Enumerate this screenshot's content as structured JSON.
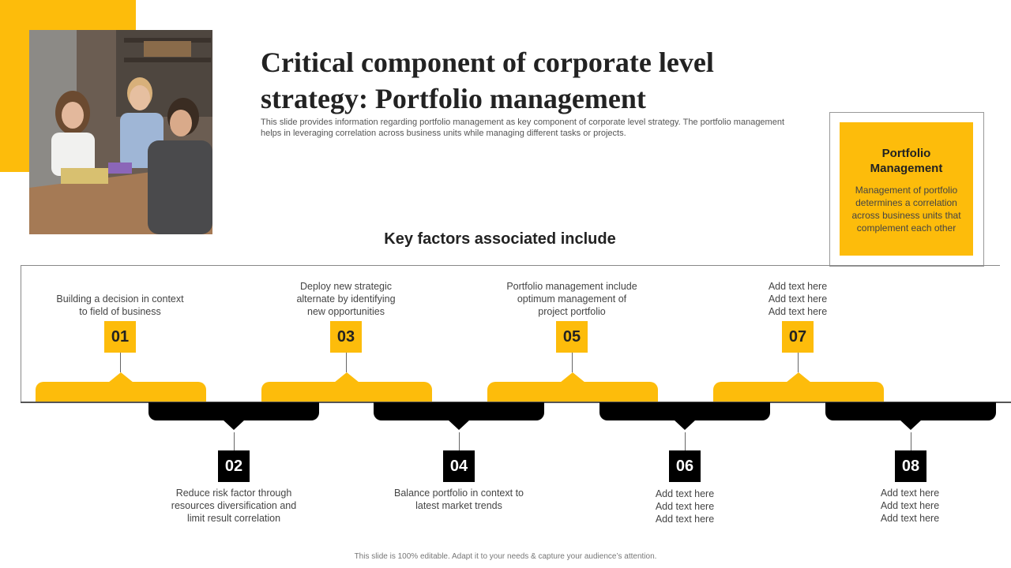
{
  "slide": {
    "title": "Critical component of corporate level strategy: Portfolio management",
    "subtitle": "This slide provides information regarding portfolio management as key component of corporate level strategy. The portfolio management helps in leveraging correlation across business units while managing different tasks or projects.",
    "section_heading": "Key factors associated include",
    "footer": "This slide is 100% editable. Adapt it to your needs & capture your audience’s attention.",
    "colors": {
      "accent": "#FDBC0B",
      "dark": "#000000"
    }
  },
  "portfolio_box": {
    "title": "Portfolio Management",
    "text": "Management of portfolio determines a correlation across business units that complement each other"
  },
  "factors": [
    {
      "number": "01",
      "lines": [
        "Building a decision in context",
        "to field of business"
      ]
    },
    {
      "number": "02",
      "lines": [
        "Reduce risk factor through",
        "resources diversification and",
        "limit result correlation"
      ]
    },
    {
      "number": "03",
      "lines": [
        "Deploy new strategic",
        "alternate by identifying",
        "new opportunities"
      ]
    },
    {
      "number": "04",
      "lines": [
        "Balance portfolio in context to",
        "latest market trends"
      ]
    },
    {
      "number": "05",
      "lines": [
        "Portfolio management include",
        "optimum management of",
        "project portfolio"
      ]
    },
    {
      "number": "06",
      "lines": [
        "Add text here",
        "Add text here",
        "Add text here"
      ]
    },
    {
      "number": "07",
      "lines": [
        "Add text here",
        "Add text here",
        "Add text here"
      ]
    },
    {
      "number": "08",
      "lines": [
        "Add text here",
        "Add text here",
        "Add text here"
      ]
    }
  ]
}
